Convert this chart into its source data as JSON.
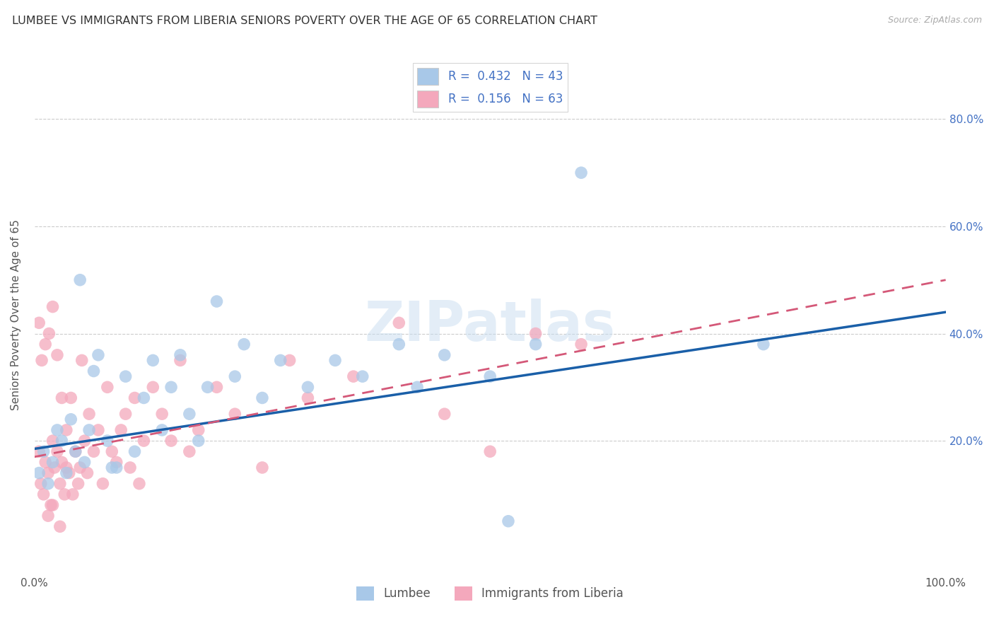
{
  "title": "LUMBEE VS IMMIGRANTS FROM LIBERIA SENIORS POVERTY OVER THE AGE OF 65 CORRELATION CHART",
  "source": "Source: ZipAtlas.com",
  "ylabel": "Seniors Poverty Over the Age of 65",
  "xlabel_lumbee": "Lumbee",
  "xlabel_liberia": "Immigrants from Liberia",
  "xlim": [
    0.0,
    1.0
  ],
  "ylim": [
    -0.05,
    0.92
  ],
  "lumbee_color": "#a8c8e8",
  "liberia_color": "#f4a8bc",
  "lumbee_line_color": "#1a5fa8",
  "liberia_line_color": "#d45878",
  "R_lumbee": 0.432,
  "N_lumbee": 43,
  "R_liberia": 0.156,
  "N_liberia": 63,
  "lumbee_x": [
    0.005,
    0.01,
    0.015,
    0.02,
    0.025,
    0.03,
    0.035,
    0.04,
    0.045,
    0.05,
    0.055,
    0.06,
    0.07,
    0.08,
    0.09,
    0.1,
    0.11,
    0.12,
    0.13,
    0.14,
    0.15,
    0.16,
    0.17,
    0.18,
    0.19,
    0.2,
    0.22,
    0.23,
    0.25,
    0.27,
    0.3,
    0.33,
    0.36,
    0.4,
    0.42,
    0.45,
    0.5,
    0.55,
    0.6,
    0.8,
    0.085,
    0.52,
    0.065
  ],
  "lumbee_y": [
    0.14,
    0.18,
    0.12,
    0.16,
    0.22,
    0.2,
    0.14,
    0.24,
    0.18,
    0.5,
    0.16,
    0.22,
    0.36,
    0.2,
    0.15,
    0.32,
    0.18,
    0.28,
    0.35,
    0.22,
    0.3,
    0.36,
    0.25,
    0.2,
    0.3,
    0.46,
    0.32,
    0.38,
    0.28,
    0.35,
    0.3,
    0.35,
    0.32,
    0.38,
    0.3,
    0.36,
    0.32,
    0.38,
    0.7,
    0.38,
    0.15,
    0.05,
    0.33
  ],
  "liberia_x": [
    0.005,
    0.007,
    0.01,
    0.012,
    0.015,
    0.018,
    0.02,
    0.022,
    0.025,
    0.028,
    0.03,
    0.033,
    0.035,
    0.038,
    0.04,
    0.042,
    0.045,
    0.048,
    0.05,
    0.052,
    0.055,
    0.058,
    0.06,
    0.065,
    0.07,
    0.075,
    0.08,
    0.085,
    0.09,
    0.095,
    0.1,
    0.105,
    0.11,
    0.115,
    0.12,
    0.13,
    0.14,
    0.15,
    0.16,
    0.17,
    0.18,
    0.2,
    0.22,
    0.25,
    0.28,
    0.3,
    0.35,
    0.4,
    0.45,
    0.5,
    0.55,
    0.6,
    0.005,
    0.008,
    0.012,
    0.016,
    0.02,
    0.025,
    0.03,
    0.035,
    0.015,
    0.02,
    0.028
  ],
  "liberia_y": [
    0.18,
    0.12,
    0.1,
    0.16,
    0.14,
    0.08,
    0.2,
    0.15,
    0.18,
    0.12,
    0.16,
    0.1,
    0.22,
    0.14,
    0.28,
    0.1,
    0.18,
    0.12,
    0.15,
    0.35,
    0.2,
    0.14,
    0.25,
    0.18,
    0.22,
    0.12,
    0.3,
    0.18,
    0.16,
    0.22,
    0.25,
    0.15,
    0.28,
    0.12,
    0.2,
    0.3,
    0.25,
    0.2,
    0.35,
    0.18,
    0.22,
    0.3,
    0.25,
    0.15,
    0.35,
    0.28,
    0.32,
    0.42,
    0.25,
    0.18,
    0.4,
    0.38,
    0.42,
    0.35,
    0.38,
    0.4,
    0.45,
    0.36,
    0.28,
    0.15,
    0.06,
    0.08,
    0.04
  ],
  "watermark_text": "ZIPatlas",
  "background_color": "#ffffff",
  "grid_color": "#cccccc",
  "title_fontsize": 11.5,
  "axis_label_fontsize": 11,
  "tick_fontsize": 11,
  "legend_fontsize": 12
}
